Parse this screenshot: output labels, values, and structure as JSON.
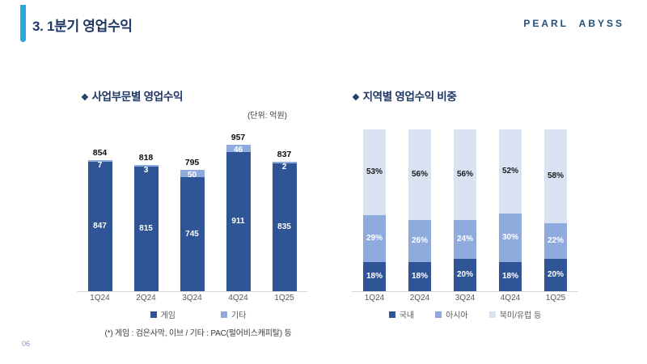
{
  "slide": {
    "title": "3. 1분기 영업수익",
    "logo": "PEARL ABYSS",
    "page_number": "06",
    "footnote": "(*) 게임 : 검은사막, 이브 / 기타 : PAC(펄어비스캐피탈) 등"
  },
  "colors": {
    "accent": "#2BA7E0",
    "navy": "#1F3864",
    "logo_navy": "#1F4E79",
    "dark_bar": "#2F5597",
    "medium_bar": "#8FAADC",
    "light_bar": "#D9E2F3",
    "page_blue": "#8193C0"
  },
  "chart_data": [
    {
      "type": "bar",
      "stacked": true,
      "title": "사업부문별 영업수익",
      "title_icon": "❖",
      "unit_label": "(단위: 억원)",
      "categories": [
        "1Q24",
        "2Q24",
        "3Q24",
        "4Q24",
        "1Q25"
      ],
      "series": [
        {
          "name": "게임",
          "color_key": "dark_bar",
          "values": [
            847,
            815,
            745,
            911,
            835
          ]
        },
        {
          "name": "기타",
          "color_key": "medium_bar",
          "values": [
            7,
            3,
            50,
            46,
            2
          ]
        }
      ],
      "totals": [
        854,
        818,
        795,
        957,
        837
      ],
      "ylim": [
        0,
        1060
      ],
      "grid": false,
      "legend_position": "bottom"
    },
    {
      "type": "bar",
      "stacked": true,
      "percent": true,
      "title": "지역별 영업수익 비중",
      "title_icon": "❖",
      "unit_label": "",
      "categories": [
        "1Q24",
        "2Q24",
        "3Q24",
        "4Q24",
        "1Q25"
      ],
      "series": [
        {
          "name": "국내",
          "color_key": "dark_bar",
          "values": [
            18,
            18,
            20,
            18,
            20
          ]
        },
        {
          "name": "아시아",
          "color_key": "medium_bar",
          "values": [
            29,
            26,
            24,
            30,
            22
          ]
        },
        {
          "name": "북미/유럽 등",
          "color_key": "light_bar",
          "values": [
            53,
            56,
            56,
            52,
            58
          ]
        }
      ],
      "ylim": [
        0,
        100
      ],
      "grid": false,
      "legend_position": "bottom"
    }
  ]
}
